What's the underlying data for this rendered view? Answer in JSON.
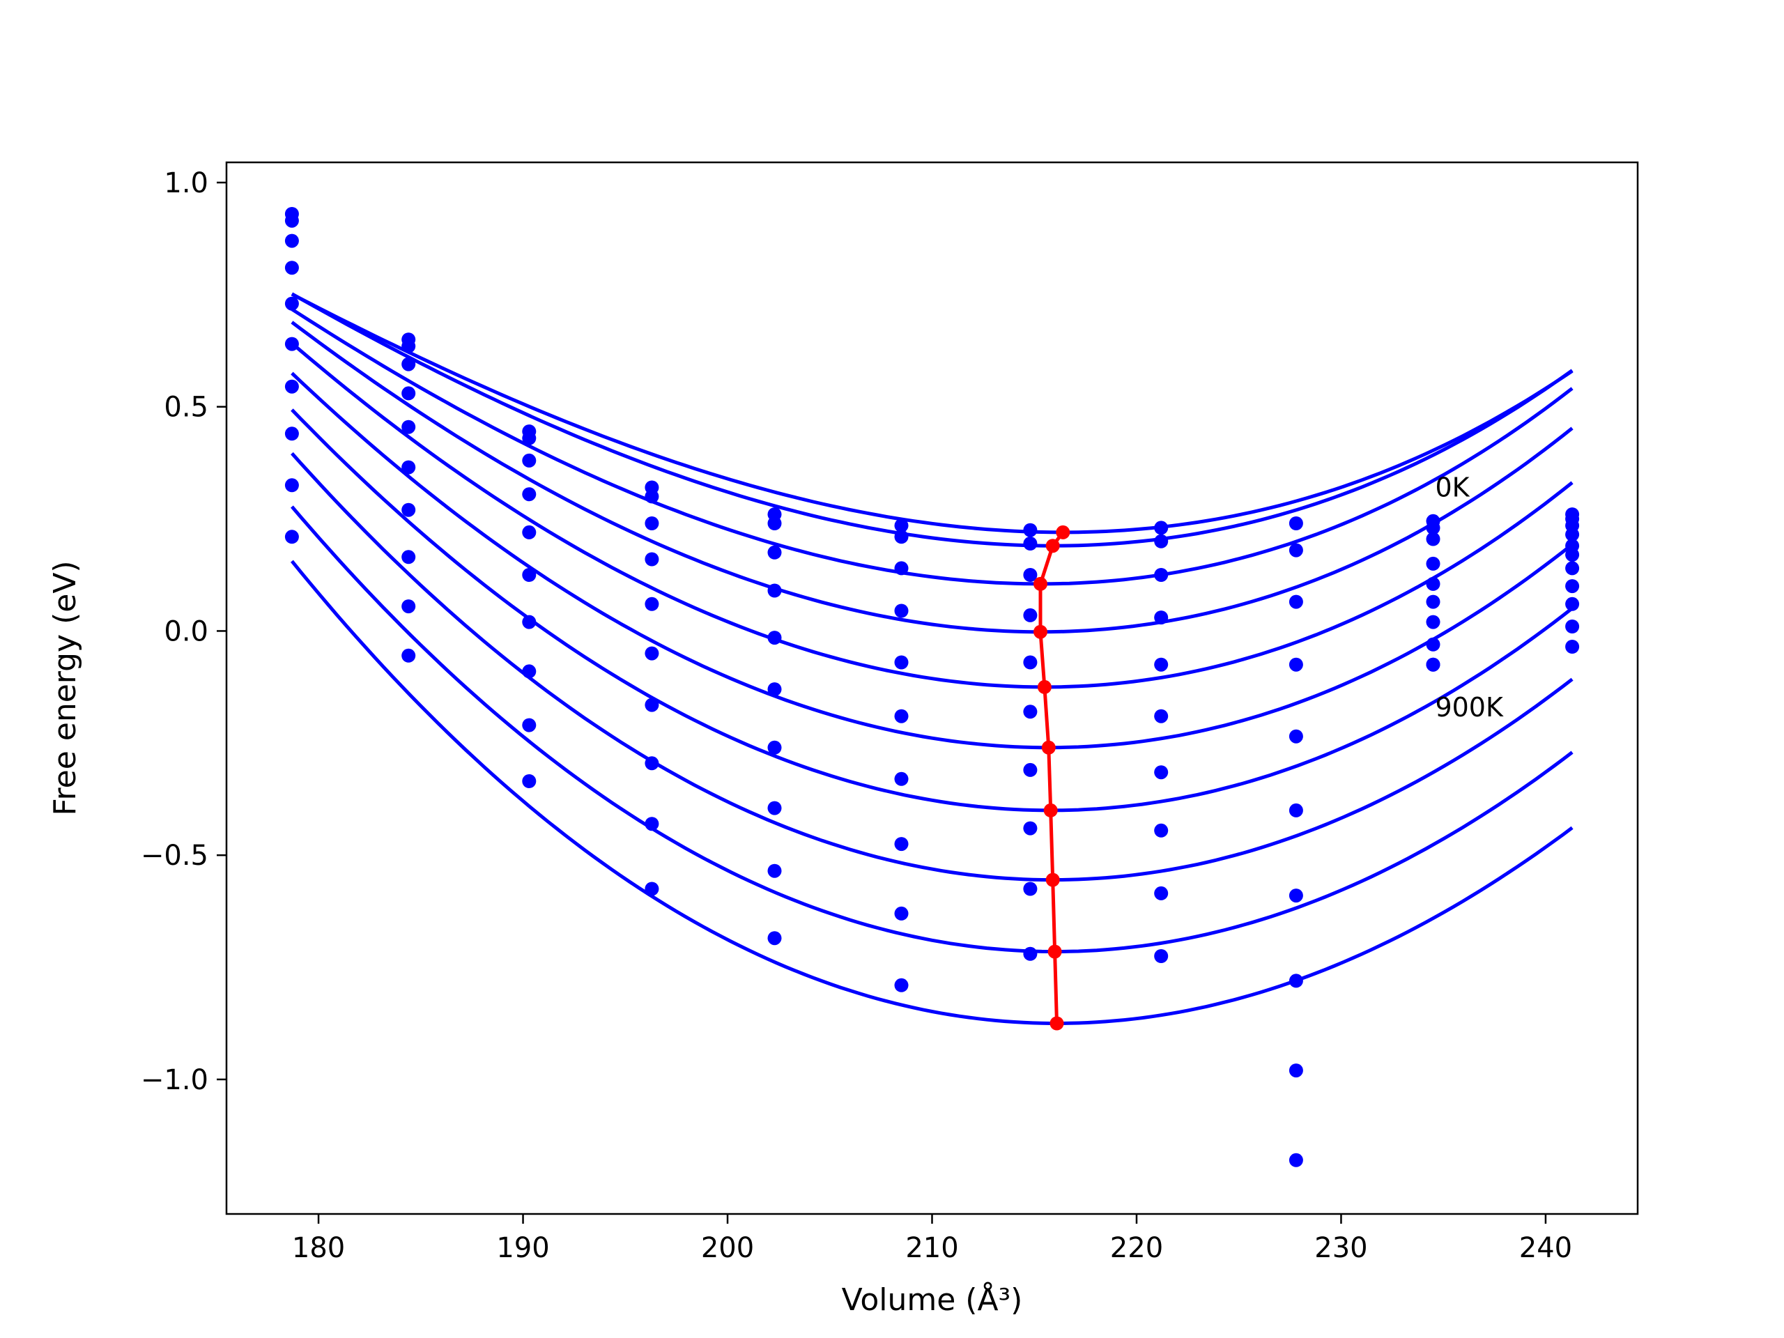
{
  "chart_data": {
    "type": "scatter",
    "xlabel": "Volume (Å³)",
    "ylabel": "Free energy (eV)",
    "xlim": [
      175.5,
      244.5
    ],
    "ylim": [
      -1.3,
      1.045
    ],
    "xticks": [
      "180",
      "190",
      "200",
      "210",
      "220",
      "230",
      "240"
    ],
    "yticks": [
      "1.0",
      "0.5",
      "0.0",
      "−0.5",
      "−1.0"
    ],
    "xtick_values": [
      180,
      190,
      200,
      210,
      220,
      230,
      240
    ],
    "ytick_values": [
      1.0,
      0.5,
      0.0,
      -0.5,
      -1.0
    ],
    "grid": false,
    "annotations": [
      {
        "text": "0K",
        "x": 234.6,
        "y": 0.32
      },
      {
        "text": "900K",
        "x": 234.6,
        "y": -0.17
      }
    ],
    "colors": {
      "points": "#0000ff",
      "fits": "#0000ff",
      "minima": "#ff0000"
    },
    "volumes": [
      178.7,
      184.4,
      190.3,
      196.3,
      202.3,
      208.5,
      214.8,
      221.2,
      227.8,
      234.5,
      241.3
    ],
    "series": [
      {
        "values": [
          0.93,
          0.65,
          0.445,
          0.32,
          0.26,
          0.235,
          0.225,
          0.23,
          0.24,
          0.245,
          0.26
        ],
        "fit": {
          "v0": 216.4,
          "e0": 0.22,
          "a": 0.000498,
          "b": 3.3e-06
        }
      },
      {
        "values": [
          0.915,
          0.635,
          0.43,
          0.3,
          0.24,
          0.21,
          0.195,
          0.2,
          0.18,
          0.23,
          0.25
        ],
        "fit": {
          "v0": 215.9,
          "e0": 0.19,
          "a": 0.000525,
          "b": 3.2e-06
        }
      },
      {
        "values": [
          0.87,
          0.595,
          0.38,
          0.24,
          0.175,
          0.14,
          0.125,
          0.125,
          0.065,
          0.205,
          0.235
        ],
        "fit": {
          "v0": 215.3,
          "e0": 0.105,
          "a": 0.000567,
          "b": 3e-06
        }
      },
      {
        "values": [
          0.81,
          0.53,
          0.305,
          0.16,
          0.09,
          0.045,
          0.035,
          0.03,
          -0.075,
          0.15,
          0.215
        ],
        "fit": {
          "v0": 215.3,
          "e0": -0.002,
          "a": 0.000607,
          "b": 2.5e-06
        }
      },
      {
        "values": [
          0.73,
          0.455,
          0.22,
          0.06,
          -0.015,
          -0.07,
          -0.07,
          -0.075,
          -0.235,
          0.105,
          0.19
        ],
        "fit": {
          "v0": 215.5,
          "e0": -0.125,
          "a": 0.000636,
          "b": 1.9e-06
        }
      },
      {
        "values": [
          0.64,
          0.365,
          0.125,
          -0.05,
          -0.13,
          -0.19,
          -0.18,
          -0.19,
          -0.4,
          0.065,
          0.17
        ],
        "fit": {
          "v0": 215.7,
          "e0": -0.26,
          "a": 0.000658,
          "b": 1.3e-06
        }
      },
      {
        "values": [
          0.545,
          0.27,
          0.02,
          -0.165,
          -0.26,
          -0.33,
          -0.31,
          -0.315,
          -0.59,
          0.02,
          0.14
        ],
        "fit": {
          "v0": 215.8,
          "e0": -0.4,
          "a": 0.000675,
          "b": 7e-07
        }
      },
      {
        "values": [
          0.44,
          0.165,
          -0.09,
          -0.295,
          -0.395,
          -0.475,
          -0.44,
          -0.445,
          -0.78,
          -0.03,
          0.1
        ],
        "fit": {
          "v0": 215.9,
          "e0": -0.555,
          "a": 0.000691,
          "b": 1e-07
        }
      },
      {
        "values": [
          0.325,
          0.055,
          -0.21,
          -0.43,
          -0.535,
          -0.63,
          -0.575,
          -0.585,
          -0.98,
          -0.075,
          0.06
        ],
        "fit": {
          "v0": 216.0,
          "e0": -0.715,
          "a": 0.000702,
          "b": -3e-07
        }
      },
      {
        "values": [
          0.21,
          -0.055,
          -0.335,
          -0.575,
          -0.685,
          -0.79,
          -0.72,
          -0.725,
          -1.18,
          -0.075,
          0.01
        ],
        "fit": {
          "v0": 216.1,
          "e0": -0.875,
          "a": 0.000707,
          "b": -8e-07
        }
      },
      {
        "points": [
          [
            241.3,
            -0.035
          ]
        ]
      }
    ],
    "minima_line": {
      "x": [
        216.4,
        215.9,
        215.3,
        215.3,
        215.5,
        215.7,
        215.8,
        215.9,
        216.0,
        216.1
      ],
      "y": [
        0.22,
        0.19,
        0.105,
        -0.002,
        -0.125,
        -0.26,
        -0.4,
        -0.555,
        -0.715,
        -0.875
      ]
    }
  }
}
